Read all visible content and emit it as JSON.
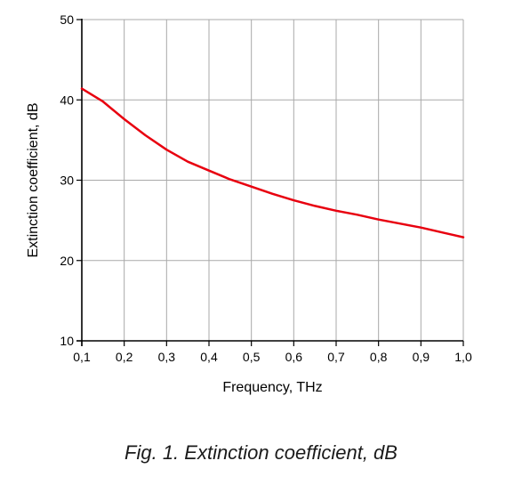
{
  "caption": "Fig. 1. Extinction coefficient, dB",
  "chart_data": {
    "type": "line",
    "title": "",
    "xlabel": "Frequency, THz",
    "ylabel": "Extinction coefficient, dB",
    "xlim": [
      0.1,
      1.0
    ],
    "ylim": [
      10,
      50
    ],
    "x_ticks": [
      0.1,
      0.2,
      0.3,
      0.4,
      0.5,
      0.6,
      0.7,
      0.8,
      0.9,
      1.0
    ],
    "x_tick_labels": [
      "0,1",
      "0,2",
      "0,3",
      "0,4",
      "0,5",
      "0,6",
      "0,7",
      "0,8",
      "0,9",
      "1,0"
    ],
    "y_ticks": [
      10,
      20,
      30,
      40,
      50
    ],
    "y_tick_labels": [
      "10",
      "20",
      "30",
      "40",
      "50"
    ],
    "grid": true,
    "line_color": "#e8000f",
    "series": [
      {
        "x": [
          0.1,
          0.15,
          0.2,
          0.25,
          0.3,
          0.35,
          0.4,
          0.45,
          0.5,
          0.55,
          0.6,
          0.65,
          0.7,
          0.75,
          0.8,
          0.85,
          0.9,
          0.95,
          1.0
        ],
        "y": [
          41.4,
          39.8,
          37.6,
          35.6,
          33.8,
          32.3,
          31.2,
          30.1,
          29.2,
          28.3,
          27.5,
          26.8,
          26.2,
          25.7,
          25.1,
          24.6,
          24.1,
          23.5,
          22.9
        ]
      }
    ]
  }
}
